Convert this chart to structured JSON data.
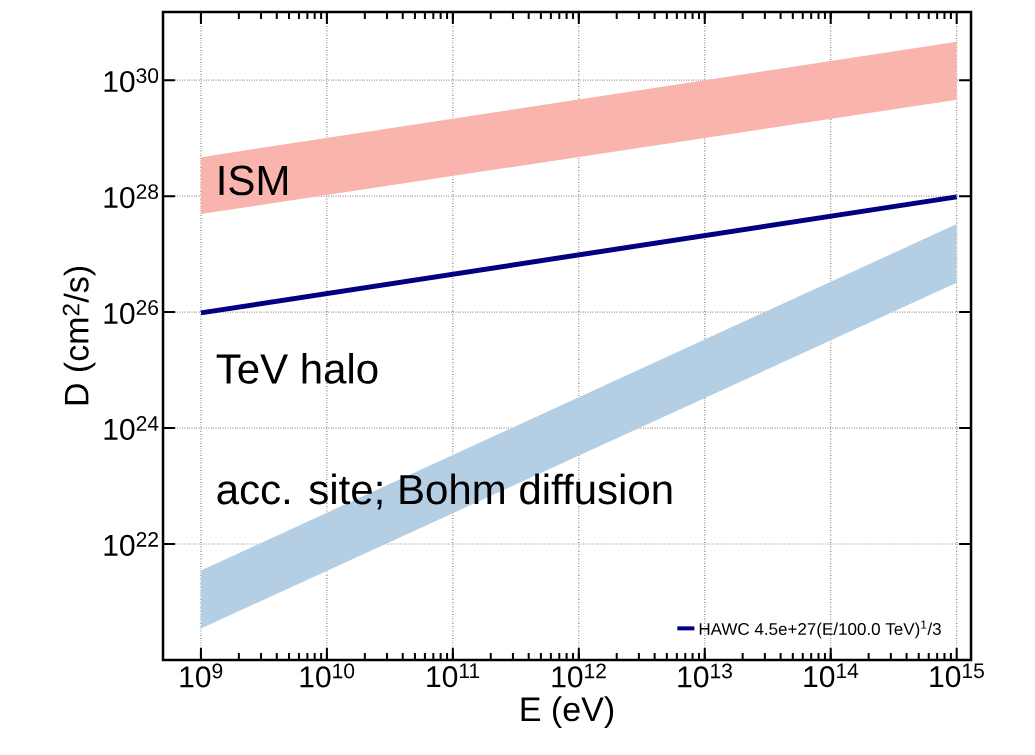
{
  "chart_data": {
    "type": "line",
    "xlabel": "E (eV)",
    "ylabel": "D (cm$^{2}$/s)",
    "log": "xy",
    "grid": true,
    "legend": "bottom right",
    "xlim": [
      500000000.0,
      1300000000000000.0
    ],
    "ylim": [
      1e+20,
      1.5e+31
    ],
    "xticks": [
      {
        "value": 1000000000.0,
        "label": "10$^{9}$"
      },
      {
        "value": 10000000000.0,
        "label": "10$^{10}$"
      },
      {
        "value": 100000000000.0,
        "label": "10$^{11}$"
      },
      {
        "value": 1000000000000.0,
        "label": "10$^{12}$"
      },
      {
        "value": 10000000000000.0,
        "label": "10$^{13}$"
      },
      {
        "value": 100000000000000.0,
        "label": "10$^{14}$"
      },
      {
        "value": 1000000000000000.0,
        "label": "10$^{15}$"
      }
    ],
    "yticks": [
      {
        "value": 1e+22,
        "label": "10$^{22}$"
      },
      {
        "value": 1e+24,
        "label": "10$^{24}$"
      },
      {
        "value": 1e+26,
        "label": "10$^{26}$"
      },
      {
        "value": 1e+28,
        "label": "10$^{28}$"
      },
      {
        "value": 1e+30,
        "label": "10$^{30}$"
      }
    ],
    "series": [
      {
        "type": "area",
        "color": "#f9b4ae",
        "values": [
          null,
          null
        ],
        "upper": [
          4.7e+28,
          4.6e+30
        ],
        "lower": [
          4.9e+27,
          4.6e+29
        ]
      },
      {
        "type": "area",
        "color": "#b4cfe4",
        "values": [
          null,
          null
        ],
        "upper": [
          3.5e+21,
          3.3e+27
        ],
        "lower": [
          3.5e+20,
          3.2e+26
        ]
      },
      {
        "name": "HAWC 4.5e+27(E/100.0 TeV)$^{1}$/3",
        "color": "#000080",
        "values": [
          9.7e+25,
          9.7e+27
        ]
      }
    ],
    "x": [
      1000000000.0,
      1000000000000000.0
    ],
    "annotations": [
      "ISM",
      "TeV halo",
      "acc. site; Bohm diffusion"
    ]
  }
}
